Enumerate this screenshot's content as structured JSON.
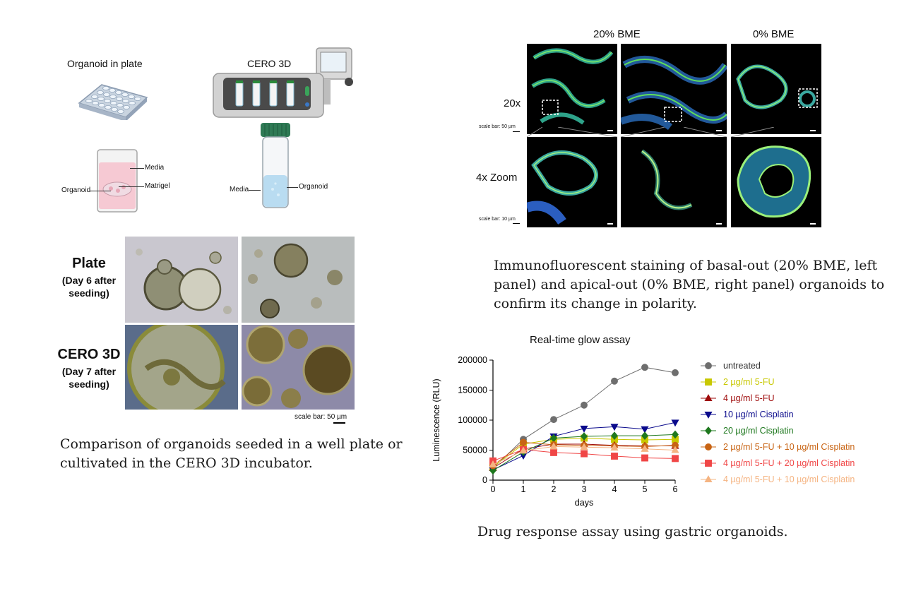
{
  "schematic": {
    "plate_title": "Organoid in plate",
    "cero_title": "CERO 3D",
    "media_label": "Media",
    "organoid_label": "Organoid",
    "matrigel_label": "Matrigel",
    "tube_media_label": "Media",
    "tube_organoid_label": "Organoid"
  },
  "comparison": {
    "plate_label": "Plate",
    "plate_sub": "(Day 6 after seeding)",
    "cero_label": "CERO 3D",
    "cero_sub": "(Day 7 after seeding)",
    "scale_bar": "scale bar: 50 µm",
    "caption": "Comparison of organoids seeded in a well plate or cultivated in the CERO 3D incubator."
  },
  "immuno": {
    "col_20": "20% BME",
    "col_0": "0% BME",
    "row_20x": "20x",
    "row_zoom": "4x Zoom",
    "scale_50": "scale bar: 50 µm",
    "scale_10": "scale bar: 10 µm",
    "caption": "Immunofluorescent staining of basal-out (20% BME, left panel) and apical-out (0% BME, right panel) organoids to confirm its change in polarity."
  },
  "chart_data": {
    "type": "line",
    "title": "Real-time glow assay",
    "xlabel": "days",
    "ylabel": "Luminescence (RLU)",
    "x": [
      0,
      1,
      2,
      3,
      4,
      5,
      6
    ],
    "xlim": [
      0,
      6
    ],
    "ylim": [
      0,
      200000
    ],
    "yticks": [
      0,
      50000,
      100000,
      150000,
      200000
    ],
    "ytick_labels": [
      "0",
      "50000",
      "100000",
      "150000",
      "200000"
    ],
    "xtick_labels": [
      "0",
      "1",
      "2",
      "3",
      "4",
      "5",
      "6"
    ],
    "grid": false,
    "legend_position": "right",
    "series": [
      {
        "name": "untreated",
        "color": "#6e6e6e",
        "marker": "circle",
        "values": [
          20000,
          68000,
          101000,
          125000,
          165000,
          188000,
          179000
        ]
      },
      {
        "name": "2 µg/ml 5-FU",
        "color": "#c8c800",
        "marker": "square",
        "values": [
          22000,
          60000,
          68000,
          70000,
          68000,
          67000,
          68000
        ]
      },
      {
        "name": "4 µg/ml 5-FU",
        "color": "#9e0a0a",
        "marker": "triangle-up",
        "values": [
          20000,
          52000,
          60000,
          60000,
          58000,
          57000,
          57000
        ]
      },
      {
        "name": "10 µg/ml Cisplatin",
        "color": "#0a0a8c",
        "marker": "triangle-down",
        "values": [
          17000,
          41000,
          73000,
          86000,
          89000,
          85000,
          96000
        ]
      },
      {
        "name": "20 µg/ml Cisplatin",
        "color": "#1e781e",
        "marker": "diamond",
        "values": [
          16000,
          47000,
          70000,
          73000,
          74000,
          74000,
          76000
        ]
      },
      {
        "name": "2 µg/ml 5-FU + 10 µg/ml Cisplatin",
        "color": "#c86414",
        "marker": "circle",
        "values": [
          24000,
          63000,
          59000,
          58000,
          57000,
          56000,
          58000
        ]
      },
      {
        "name": "4 µg/ml 5-FU + 20 µg/ml Cisplatin",
        "color": "#f04646",
        "marker": "square",
        "values": [
          32000,
          51000,
          46000,
          44000,
          40000,
          37000,
          36000
        ]
      },
      {
        "name": "4 µg/ml 5-FU + 10 µg/ml Cisplatin",
        "color": "#f5b482",
        "marker": "triangle-up",
        "values": [
          26000,
          49000,
          56000,
          55000,
          54000,
          52000,
          50000
        ]
      }
    ],
    "caption": "Drug response assay using gastric organoids."
  }
}
